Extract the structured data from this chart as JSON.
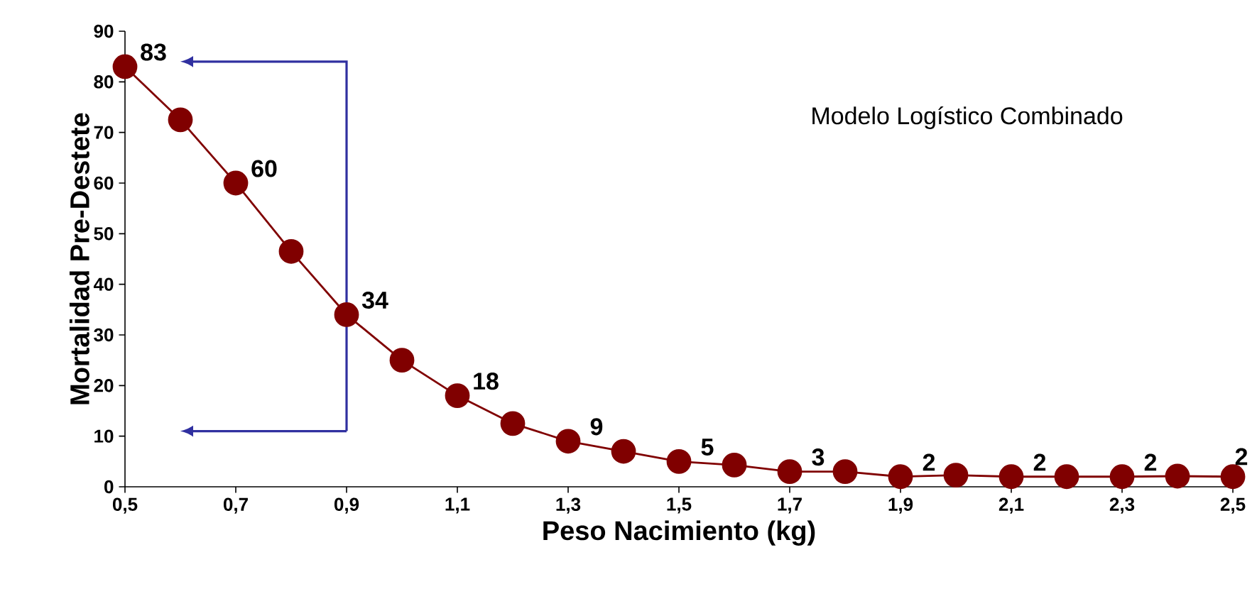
{
  "chart_data": {
    "type": "line",
    "xlabel": "Peso Nacimiento (kg)",
    "ylabel": "Mortalidad Pre-Destete",
    "annotations": [
      "Modelo Logístico Combinado"
    ],
    "x": [
      0.5,
      0.6,
      0.7,
      0.8,
      0.9,
      1.0,
      1.1,
      1.2,
      1.3,
      1.4,
      1.5,
      1.6,
      1.7,
      1.8,
      1.9,
      2.0,
      2.1,
      2.2,
      2.3,
      2.4,
      2.5
    ],
    "values": [
      83,
      72.5,
      60,
      46.5,
      34,
      25,
      18,
      12.5,
      9,
      7,
      5,
      4.3,
      3,
      3,
      2,
      2.3,
      2,
      2,
      2,
      2.1,
      2
    ],
    "value_labels": [
      "83",
      null,
      "60",
      null,
      "34",
      null,
      "18",
      null,
      "9",
      null,
      "5",
      null,
      "3",
      null,
      "2",
      null,
      "2",
      null,
      "2",
      null,
      "2"
    ],
    "color": "#800000",
    "marker": "circle",
    "xlim": [
      0.5,
      2.5
    ],
    "ylim": [
      0,
      90
    ],
    "xticks": [
      {
        "value": 0.5,
        "label": "0,5"
      },
      {
        "value": 0.7,
        "label": "0,7"
      },
      {
        "value": 0.9,
        "label": "0,9"
      },
      {
        "value": 1.1,
        "label": "1,1"
      },
      {
        "value": 1.3,
        "label": "1,3"
      },
      {
        "value": 1.5,
        "label": "1,5"
      },
      {
        "value": 1.7,
        "label": "1,7"
      },
      {
        "value": 1.9,
        "label": "1,9"
      },
      {
        "value": 2.1,
        "label": "2,1"
      },
      {
        "value": 2.3,
        "label": "2,3"
      },
      {
        "value": 2.5,
        "label": "2,5"
      }
    ],
    "yticks": [
      0,
      10,
      20,
      30,
      40,
      50,
      60,
      70,
      80,
      90
    ]
  }
}
